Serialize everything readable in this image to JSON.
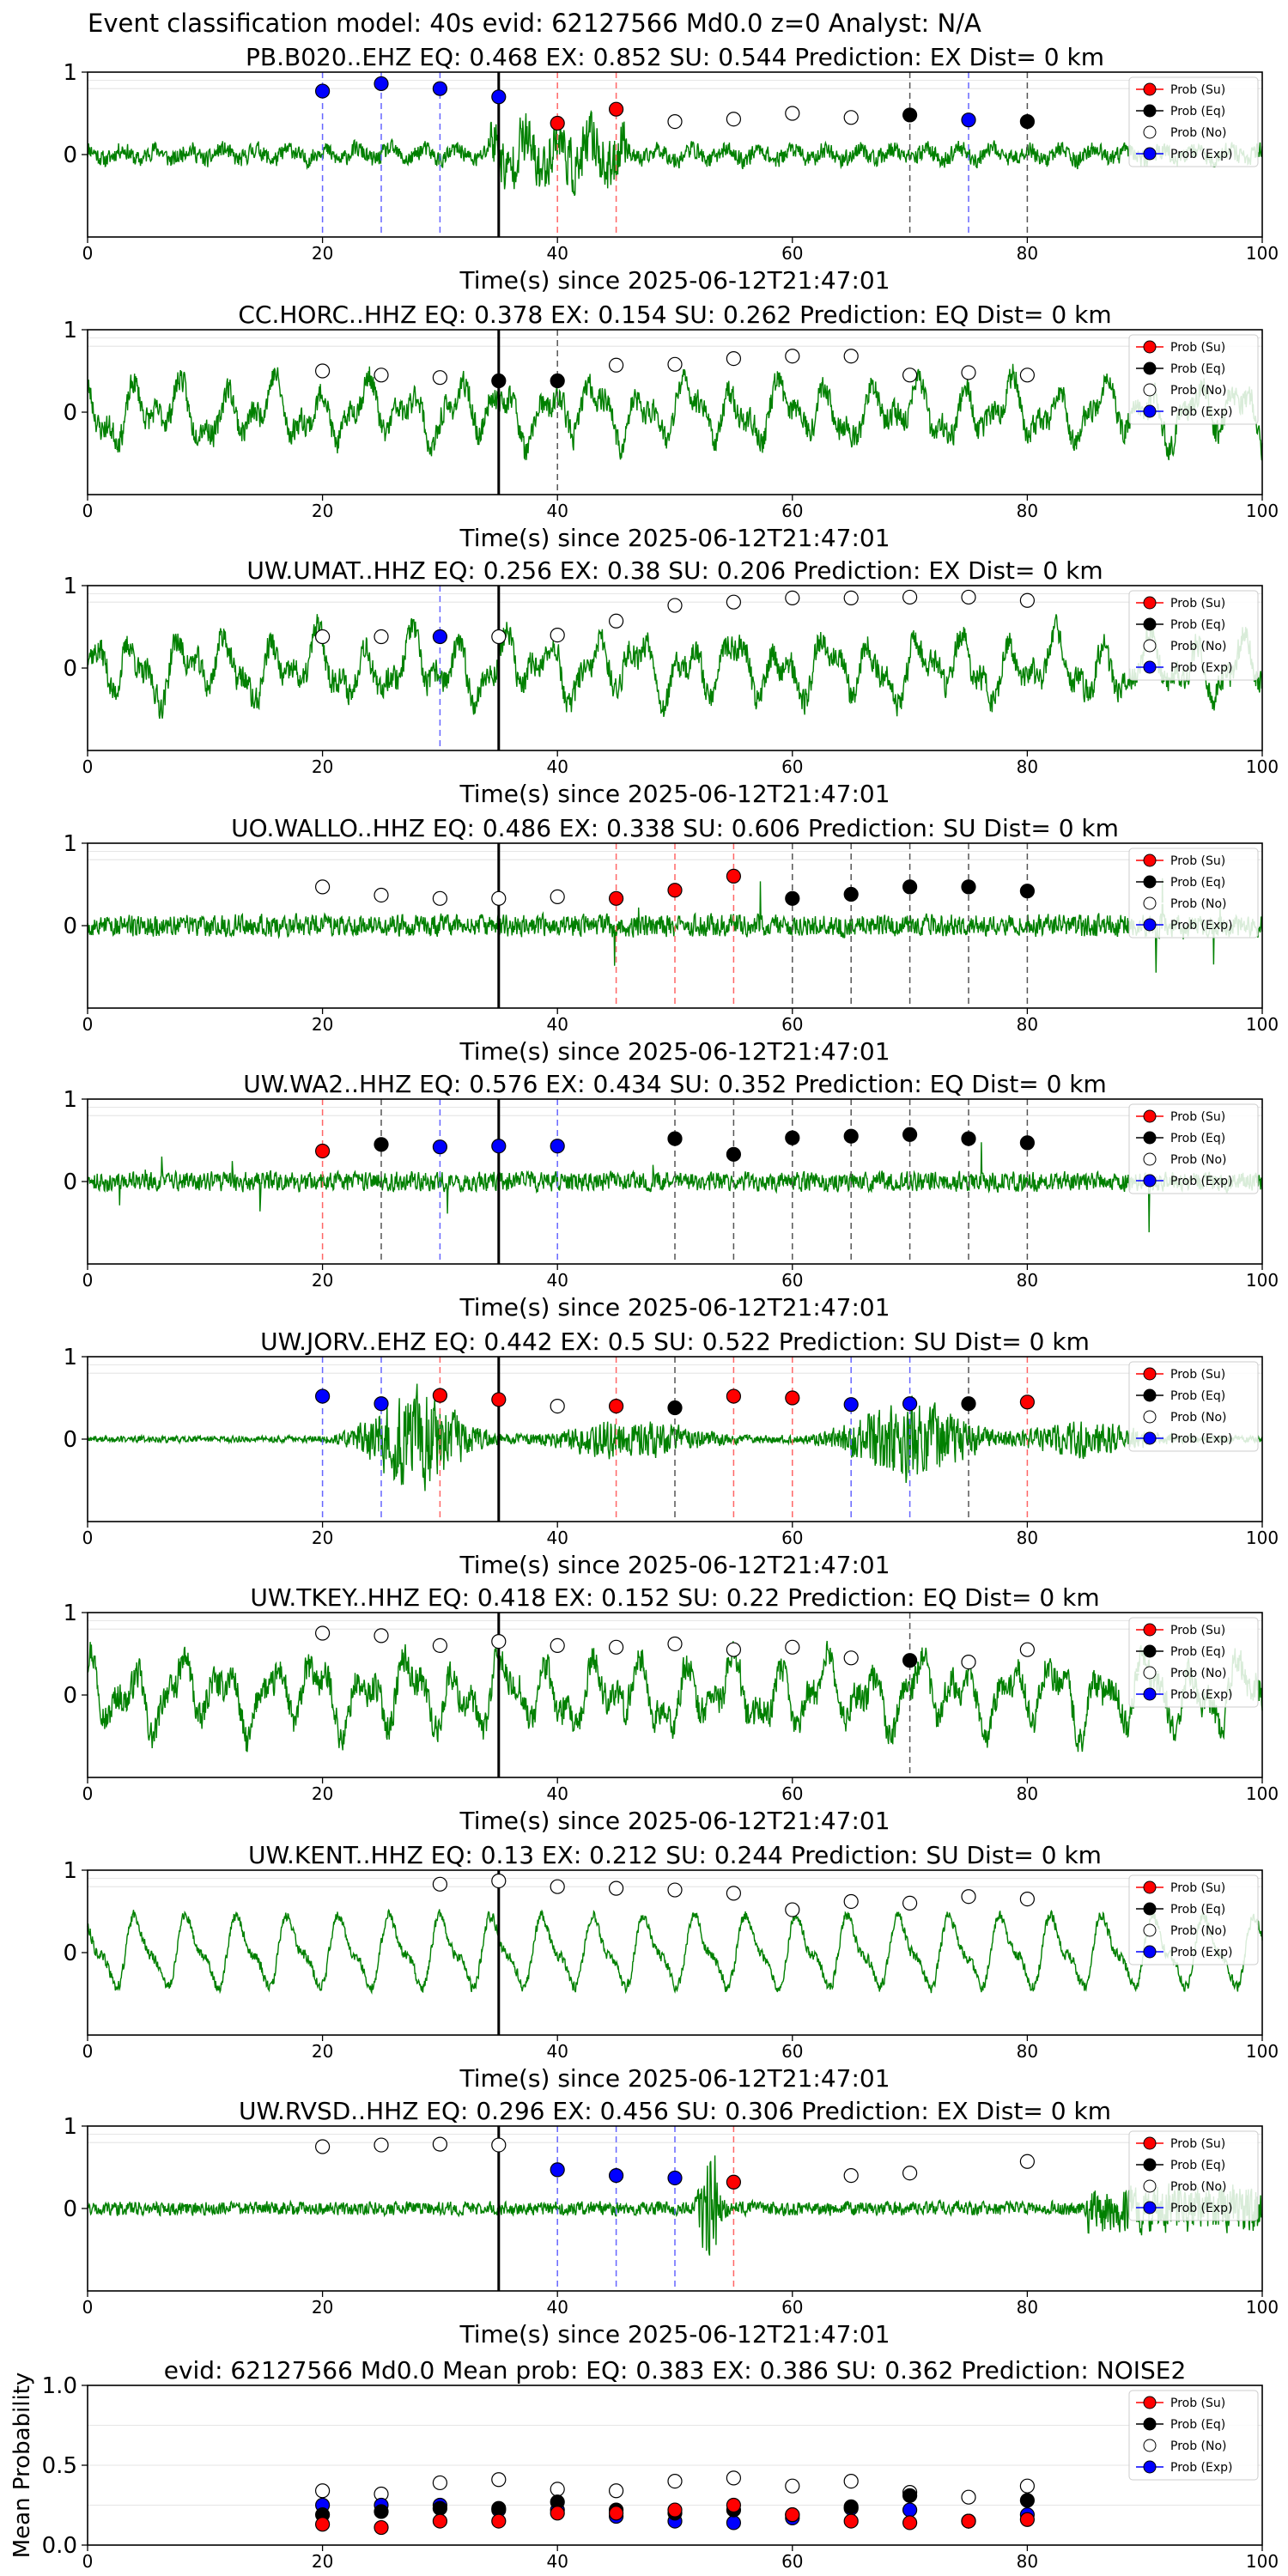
{
  "suptitle": "Event classification model: 40s evid: 62127566 Md0.0 z=0 Analyst: N/A",
  "colors": {
    "waveform": "#008000",
    "su": "#ff0000",
    "eq": "#000000",
    "no": "#ffffff",
    "exp": "#0000ff",
    "su_line": "#ff6666",
    "eq_line": "#555555",
    "exp_line": "#6666ff",
    "pick_line": "#000000",
    "grid": "#dddddd"
  },
  "legend_labels": [
    "Prob (Su)",
    "Prob (Eq)",
    "Prob (No)",
    "Prob (Exp)"
  ],
  "chart_data": [
    {
      "type": "line+scatter",
      "title": "PB.B020..EHZ   EQ: 0.468  EX: 0.852  SU: 0.544   Prediction: EX    Dist= 0 km",
      "xlabel": "Time(s) since 2025-06-12T21:47:01",
      "xlim": [
        0,
        100
      ],
      "ylim": [
        -1,
        1
      ],
      "xticks": [
        "0",
        "20",
        "40",
        "60",
        "80",
        "100"
      ],
      "yticks": [
        "1",
        "0"
      ],
      "pick_time": 35,
      "waveform": {
        "amp": 0.16,
        "style": "noisy-burst",
        "burst_start": 34,
        "burst_end": 46,
        "burst_amp": 0.5,
        "seed": 11
      },
      "points": [
        {
          "t": 20,
          "p": 0.77,
          "cls": "exp"
        },
        {
          "t": 25,
          "p": 0.86,
          "cls": "exp"
        },
        {
          "t": 30,
          "p": 0.8,
          "cls": "exp"
        },
        {
          "t": 35,
          "p": 0.7,
          "cls": "exp"
        },
        {
          "t": 40,
          "p": 0.38,
          "cls": "su"
        },
        {
          "t": 45,
          "p": 0.55,
          "cls": "su"
        },
        {
          "t": 50,
          "p": 0.4,
          "cls": "no"
        },
        {
          "t": 55,
          "p": 0.43,
          "cls": "no"
        },
        {
          "t": 60,
          "p": 0.5,
          "cls": "no"
        },
        {
          "t": 65,
          "p": 0.45,
          "cls": "no"
        },
        {
          "t": 70,
          "p": 0.48,
          "cls": "eq"
        },
        {
          "t": 75,
          "p": 0.42,
          "cls": "exp"
        },
        {
          "t": 80,
          "p": 0.4,
          "cls": "eq"
        }
      ]
    },
    {
      "type": "line+scatter",
      "title": "CC.HORC..HHZ   EQ: 0.378  EX: 0.154  SU: 0.262   Prediction: EQ    Dist= 0 km",
      "xlabel": "Time(s) since 2025-06-12T21:47:01",
      "xlim": [
        0,
        100
      ],
      "ylim": [
        -1,
        1
      ],
      "xticks": [
        "0",
        "20",
        "40",
        "60",
        "80",
        "100"
      ],
      "yticks": [
        "1",
        "0"
      ],
      "pick_time": 35,
      "waveform": {
        "amp": 0.42,
        "style": "wavy",
        "seed": 23
      },
      "points": [
        {
          "t": 20,
          "p": 0.5,
          "cls": "no"
        },
        {
          "t": 25,
          "p": 0.45,
          "cls": "no"
        },
        {
          "t": 30,
          "p": 0.42,
          "cls": "no"
        },
        {
          "t": 35,
          "p": 0.38,
          "cls": "eq"
        },
        {
          "t": 40,
          "p": 0.38,
          "cls": "eq"
        },
        {
          "t": 45,
          "p": 0.57,
          "cls": "no"
        },
        {
          "t": 50,
          "p": 0.58,
          "cls": "no"
        },
        {
          "t": 55,
          "p": 0.65,
          "cls": "no"
        },
        {
          "t": 60,
          "p": 0.68,
          "cls": "no"
        },
        {
          "t": 65,
          "p": 0.68,
          "cls": "no"
        },
        {
          "t": 70,
          "p": 0.45,
          "cls": "no"
        },
        {
          "t": 75,
          "p": 0.48,
          "cls": "no"
        },
        {
          "t": 80,
          "p": 0.45,
          "cls": "no"
        }
      ]
    },
    {
      "type": "line+scatter",
      "title": "UW.UMAT..HHZ   EQ: 0.256  EX: 0.38  SU: 0.206   Prediction: EX    Dist= 0 km",
      "xlabel": "Time(s) since 2025-06-12T21:47:01",
      "xlim": [
        0,
        100
      ],
      "ylim": [
        -1,
        1
      ],
      "xticks": [
        "0",
        "20",
        "40",
        "60",
        "80",
        "100"
      ],
      "yticks": [
        "1",
        "0"
      ],
      "pick_time": 35,
      "waveform": {
        "amp": 0.45,
        "style": "wavy",
        "seed": 37
      },
      "points": [
        {
          "t": 20,
          "p": 0.38,
          "cls": "no"
        },
        {
          "t": 25,
          "p": 0.38,
          "cls": "no"
        },
        {
          "t": 30,
          "p": 0.38,
          "cls": "exp"
        },
        {
          "t": 35,
          "p": 0.38,
          "cls": "no"
        },
        {
          "t": 40,
          "p": 0.4,
          "cls": "no"
        },
        {
          "t": 45,
          "p": 0.57,
          "cls": "no"
        },
        {
          "t": 50,
          "p": 0.76,
          "cls": "no"
        },
        {
          "t": 55,
          "p": 0.8,
          "cls": "no"
        },
        {
          "t": 60,
          "p": 0.85,
          "cls": "no"
        },
        {
          "t": 65,
          "p": 0.85,
          "cls": "no"
        },
        {
          "t": 70,
          "p": 0.86,
          "cls": "no"
        },
        {
          "t": 75,
          "p": 0.86,
          "cls": "no"
        },
        {
          "t": 80,
          "p": 0.82,
          "cls": "no"
        }
      ]
    },
    {
      "type": "line+scatter",
      "title": "UO.WALLO..HHZ   EQ: 0.486  EX: 0.338  SU: 0.606   Prediction: SU    Dist= 0 km",
      "xlabel": "Time(s) since 2025-06-12T21:47:01",
      "xlim": [
        0,
        100
      ],
      "ylim": [
        -1,
        1
      ],
      "xticks": [
        "0",
        "20",
        "40",
        "60",
        "80",
        "100"
      ],
      "yticks": [
        "1",
        "0"
      ],
      "pick_time": 35,
      "waveform": {
        "amp": 0.16,
        "style": "noisy-spikes",
        "seed": 53
      },
      "points": [
        {
          "t": 20,
          "p": 0.47,
          "cls": "no"
        },
        {
          "t": 25,
          "p": 0.37,
          "cls": "no"
        },
        {
          "t": 30,
          "p": 0.33,
          "cls": "no"
        },
        {
          "t": 35,
          "p": 0.33,
          "cls": "no"
        },
        {
          "t": 40,
          "p": 0.35,
          "cls": "no"
        },
        {
          "t": 45,
          "p": 0.33,
          "cls": "su"
        },
        {
          "t": 50,
          "p": 0.43,
          "cls": "su"
        },
        {
          "t": 55,
          "p": 0.6,
          "cls": "su"
        },
        {
          "t": 60,
          "p": 0.33,
          "cls": "eq"
        },
        {
          "t": 65,
          "p": 0.38,
          "cls": "eq"
        },
        {
          "t": 70,
          "p": 0.47,
          "cls": "eq"
        },
        {
          "t": 75,
          "p": 0.47,
          "cls": "eq"
        },
        {
          "t": 80,
          "p": 0.42,
          "cls": "eq"
        }
      ]
    },
    {
      "type": "line+scatter",
      "title": "UW.WA2..HHZ   EQ: 0.576  EX: 0.434  SU: 0.352   Prediction: EQ    Dist= 0 km",
      "xlabel": "Time(s) since 2025-06-12T21:47:01",
      "xlim": [
        0,
        100
      ],
      "ylim": [
        -1,
        1
      ],
      "xticks": [
        "0",
        "20",
        "40",
        "60",
        "80",
        "100"
      ],
      "yticks": [
        "1",
        "0"
      ],
      "pick_time": 35,
      "waveform": {
        "amp": 0.14,
        "style": "noisy-spikes",
        "seed": 71
      },
      "points": [
        {
          "t": 20,
          "p": 0.37,
          "cls": "su"
        },
        {
          "t": 25,
          "p": 0.45,
          "cls": "eq"
        },
        {
          "t": 30,
          "p": 0.42,
          "cls": "exp"
        },
        {
          "t": 35,
          "p": 0.43,
          "cls": "exp"
        },
        {
          "t": 40,
          "p": 0.43,
          "cls": "exp"
        },
        {
          "t": 50,
          "p": 0.52,
          "cls": "eq"
        },
        {
          "t": 55,
          "p": 0.33,
          "cls": "eq"
        },
        {
          "t": 60,
          "p": 0.53,
          "cls": "eq"
        },
        {
          "t": 65,
          "p": 0.55,
          "cls": "eq"
        },
        {
          "t": 70,
          "p": 0.57,
          "cls": "eq"
        },
        {
          "t": 75,
          "p": 0.52,
          "cls": "eq"
        },
        {
          "t": 80,
          "p": 0.47,
          "cls": "eq"
        }
      ]
    },
    {
      "type": "line+scatter",
      "title": "UW.JORV..EHZ   EQ: 0.442  EX: 0.5  SU: 0.522   Prediction: SU    Dist= 0 km",
      "xlabel": "Time(s) since 2025-06-12T21:47:01",
      "xlim": [
        0,
        100
      ],
      "ylim": [
        -1,
        1
      ],
      "xticks": [
        "0",
        "20",
        "40",
        "60",
        "80",
        "100"
      ],
      "yticks": [
        "1",
        "0"
      ],
      "pick_time": 35,
      "waveform": {
        "amp": 0.05,
        "style": "bursts",
        "seed": 89
      },
      "points": [
        {
          "t": 20,
          "p": 0.52,
          "cls": "exp"
        },
        {
          "t": 25,
          "p": 0.43,
          "cls": "exp"
        },
        {
          "t": 30,
          "p": 0.53,
          "cls": "su"
        },
        {
          "t": 35,
          "p": 0.48,
          "cls": "su"
        },
        {
          "t": 40,
          "p": 0.4,
          "cls": "no"
        },
        {
          "t": 45,
          "p": 0.4,
          "cls": "su"
        },
        {
          "t": 50,
          "p": 0.38,
          "cls": "eq"
        },
        {
          "t": 55,
          "p": 0.52,
          "cls": "su"
        },
        {
          "t": 60,
          "p": 0.5,
          "cls": "su"
        },
        {
          "t": 65,
          "p": 0.42,
          "cls": "exp"
        },
        {
          "t": 70,
          "p": 0.43,
          "cls": "exp"
        },
        {
          "t": 75,
          "p": 0.43,
          "cls": "eq"
        },
        {
          "t": 80,
          "p": 0.45,
          "cls": "su"
        }
      ]
    },
    {
      "type": "line+scatter",
      "title": "UW.TKEY..HHZ   EQ: 0.418  EX: 0.152  SU: 0.22   Prediction: EQ    Dist= 0 km",
      "xlabel": "Time(s) since 2025-06-12T21:47:01",
      "xlim": [
        0,
        100
      ],
      "ylim": [
        -1,
        1
      ],
      "xticks": [
        "0",
        "20",
        "40",
        "60",
        "80",
        "100"
      ],
      "yticks": [
        "1",
        "0"
      ],
      "pick_time": 35,
      "waveform": {
        "amp": 0.5,
        "style": "wavy",
        "seed": 97
      },
      "points": [
        {
          "t": 20,
          "p": 0.75,
          "cls": "no"
        },
        {
          "t": 25,
          "p": 0.72,
          "cls": "no"
        },
        {
          "t": 30,
          "p": 0.6,
          "cls": "no"
        },
        {
          "t": 35,
          "p": 0.65,
          "cls": "no"
        },
        {
          "t": 40,
          "p": 0.6,
          "cls": "no"
        },
        {
          "t": 45,
          "p": 0.58,
          "cls": "no"
        },
        {
          "t": 50,
          "p": 0.62,
          "cls": "no"
        },
        {
          "t": 55,
          "p": 0.55,
          "cls": "no"
        },
        {
          "t": 60,
          "p": 0.58,
          "cls": "no"
        },
        {
          "t": 65,
          "p": 0.45,
          "cls": "no"
        },
        {
          "t": 70,
          "p": 0.42,
          "cls": "eq"
        },
        {
          "t": 75,
          "p": 0.4,
          "cls": "no"
        },
        {
          "t": 80,
          "p": 0.55,
          "cls": "no"
        }
      ]
    },
    {
      "type": "line+scatter",
      "title": "UW.KENT..HHZ   EQ: 0.13  EX: 0.212  SU: 0.244   Prediction: SU    Dist= 0 km",
      "xlabel": "Time(s) since 2025-06-12T21:47:01",
      "xlim": [
        0,
        100
      ],
      "ylim": [
        -1,
        1
      ],
      "xticks": [
        "0",
        "20",
        "40",
        "60",
        "80",
        "100"
      ],
      "yticks": [
        "1",
        "0"
      ],
      "pick_time": 35,
      "waveform": {
        "amp": 0.48,
        "style": "smooth-wavy",
        "seed": 113
      },
      "points": [
        {
          "t": 30,
          "p": 0.83,
          "cls": "no"
        },
        {
          "t": 35,
          "p": 0.87,
          "cls": "no"
        },
        {
          "t": 40,
          "p": 0.8,
          "cls": "no"
        },
        {
          "t": 45,
          "p": 0.78,
          "cls": "no"
        },
        {
          "t": 50,
          "p": 0.76,
          "cls": "no"
        },
        {
          "t": 55,
          "p": 0.72,
          "cls": "no"
        },
        {
          "t": 60,
          "p": 0.52,
          "cls": "no"
        },
        {
          "t": 65,
          "p": 0.62,
          "cls": "no"
        },
        {
          "t": 70,
          "p": 0.6,
          "cls": "no"
        },
        {
          "t": 75,
          "p": 0.68,
          "cls": "no"
        },
        {
          "t": 80,
          "p": 0.65,
          "cls": "no"
        }
      ]
    },
    {
      "type": "line+scatter",
      "title": "UW.RVSD..HHZ   EQ: 0.296  EX: 0.456  SU: 0.306   Prediction: EX    Dist= 0 km",
      "xlabel": "Time(s) since 2025-06-12T21:47:01",
      "xlim": [
        0,
        100
      ],
      "ylim": [
        -1,
        1
      ],
      "xticks": [
        "0",
        "20",
        "40",
        "60",
        "80",
        "100"
      ],
      "yticks": [
        "1",
        "0"
      ],
      "pick_time": 35,
      "waveform": {
        "amp": 0.1,
        "style": "noisy-growing",
        "seed": 131
      },
      "points": [
        {
          "t": 20,
          "p": 0.75,
          "cls": "no"
        },
        {
          "t": 25,
          "p": 0.77,
          "cls": "no"
        },
        {
          "t": 30,
          "p": 0.78,
          "cls": "no"
        },
        {
          "t": 35,
          "p": 0.77,
          "cls": "no"
        },
        {
          "t": 40,
          "p": 0.47,
          "cls": "exp"
        },
        {
          "t": 45,
          "p": 0.4,
          "cls": "exp"
        },
        {
          "t": 50,
          "p": 0.37,
          "cls": "exp"
        },
        {
          "t": 55,
          "p": 0.32,
          "cls": "su"
        },
        {
          "t": 65,
          "p": 0.4,
          "cls": "no"
        },
        {
          "t": 70,
          "p": 0.43,
          "cls": "no"
        },
        {
          "t": 80,
          "p": 0.57,
          "cls": "no"
        }
      ]
    },
    {
      "type": "scatter",
      "title": "evid: 62127566  Md0.0   Mean prob:    EQ: 0.383  EX: 0.386  SU: 0.362   Prediction: NOISE2",
      "ylabel": "Mean Probability",
      "xlim": [
        0,
        100
      ],
      "ylim": [
        0,
        1
      ],
      "xticks": [
        "0",
        "20",
        "40",
        "60",
        "80",
        "100"
      ],
      "yticks": [
        "1.0",
        "0.5",
        "0.0"
      ],
      "series": [
        {
          "name": "Prob (No)",
          "cls": "no",
          "x": [
            20,
            25,
            30,
            35,
            40,
            45,
            50,
            55,
            60,
            65,
            70,
            75,
            80
          ],
          "values": [
            0.34,
            0.32,
            0.39,
            0.41,
            0.35,
            0.34,
            0.4,
            0.42,
            0.37,
            0.4,
            0.33,
            0.3,
            0.37
          ]
        },
        {
          "name": "Prob (Exp)",
          "cls": "exp",
          "x": [
            20,
            25,
            30,
            35,
            40,
            45,
            50,
            55,
            60,
            65,
            70,
            75,
            80
          ],
          "values": [
            0.25,
            0.25,
            0.25,
            0.22,
            0.22,
            0.18,
            0.15,
            0.14,
            0.17,
            0.23,
            0.22,
            0.15,
            0.19
          ]
        },
        {
          "name": "Prob (Eq)",
          "cls": "eq",
          "x": [
            20,
            25,
            30,
            35,
            40,
            45,
            50,
            55,
            60,
            65,
            70,
            75,
            80
          ],
          "values": [
            0.19,
            0.21,
            0.23,
            0.23,
            0.27,
            0.22,
            0.2,
            0.22,
            0.19,
            0.24,
            0.31,
            0.15,
            0.28
          ]
        },
        {
          "name": "Prob (Su)",
          "cls": "su",
          "x": [
            20,
            25,
            30,
            35,
            40,
            45,
            50,
            55,
            60,
            65,
            70,
            75,
            80
          ],
          "values": [
            0.13,
            0.11,
            0.15,
            0.15,
            0.2,
            0.2,
            0.22,
            0.25,
            0.19,
            0.15,
            0.14,
            0.15,
            0.16
          ]
        }
      ]
    }
  ]
}
